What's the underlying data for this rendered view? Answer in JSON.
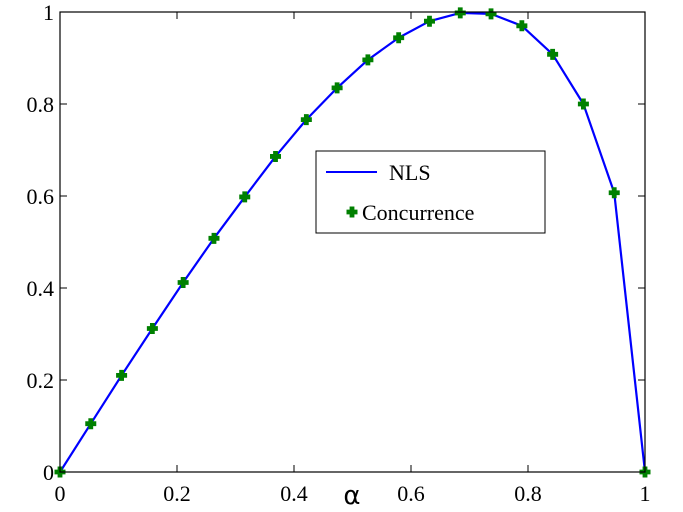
{
  "chart_data": {
    "type": "line",
    "xlabel": "α",
    "ylabel": "",
    "xlim": [
      0,
      1
    ],
    "ylim": [
      0,
      1
    ],
    "xticks": [
      0,
      0.2,
      0.4,
      0.6,
      0.8,
      1
    ],
    "xtick_labels": [
      "0",
      "0.2",
      "0.4",
      "0.6",
      "0.8",
      "1"
    ],
    "yticks": [
      0,
      0.2,
      0.4,
      0.6,
      0.8,
      1
    ],
    "ytick_labels": [
      "0",
      "0.2",
      "0.4",
      "0.6",
      "0.8",
      "1"
    ],
    "grid": false,
    "legend_position": "center-right",
    "series": [
      {
        "name": "NLS",
        "style": "line",
        "color": "#0000ff",
        "x": [
          0,
          0.0526,
          0.1053,
          0.1579,
          0.2105,
          0.2632,
          0.3158,
          0.3684,
          0.4211,
          0.4737,
          0.5263,
          0.5789,
          0.6316,
          0.6842,
          0.7368,
          0.7895,
          0.8421,
          0.8947,
          0.9474,
          1
        ],
        "y": [
          0,
          0.105,
          0.21,
          0.312,
          0.412,
          0.508,
          0.598,
          0.686,
          0.766,
          0.835,
          0.896,
          0.944,
          0.98,
          0.998,
          0.996,
          0.97,
          0.908,
          0.8,
          0.607,
          0
        ]
      },
      {
        "name": "Concurrence",
        "style": "markers",
        "color": "#008000",
        "x": [
          0,
          0.0526,
          0.1053,
          0.1579,
          0.2105,
          0.2632,
          0.3158,
          0.3684,
          0.4211,
          0.4737,
          0.5263,
          0.5789,
          0.6316,
          0.6842,
          0.7368,
          0.7895,
          0.8421,
          0.8947,
          0.9474,
          1
        ],
        "y": [
          0,
          0.105,
          0.21,
          0.312,
          0.412,
          0.508,
          0.598,
          0.686,
          0.766,
          0.835,
          0.896,
          0.944,
          0.98,
          0.998,
          0.996,
          0.97,
          0.908,
          0.8,
          0.607,
          0
        ]
      }
    ]
  }
}
